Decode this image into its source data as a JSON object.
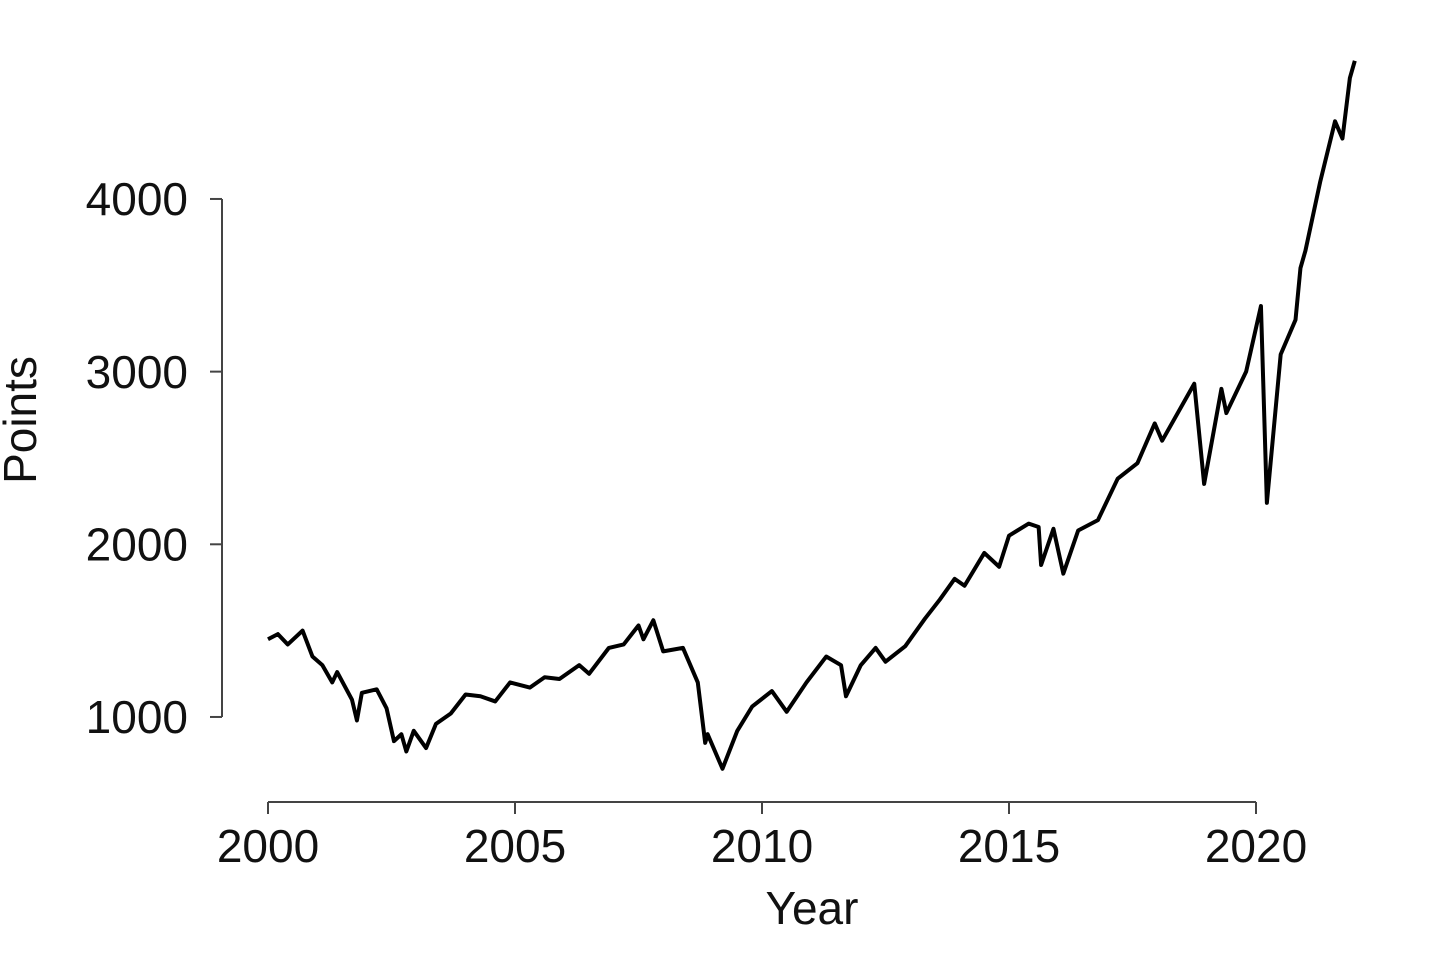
{
  "chart_data": {
    "type": "line",
    "x_label": "Year",
    "y_label": "Points",
    "xlim": [
      1999,
      2023
    ],
    "ylim": [
      500,
      5000
    ],
    "xticks": [
      2000,
      2005,
      2010,
      2015,
      2020
    ],
    "yticks": [
      1000,
      2000,
      3000,
      4000
    ],
    "grid": false,
    "series": [
      {
        "color": "#000000",
        "x": [
          2000.0,
          2000.2,
          2000.4,
          2000.7,
          2000.9,
          2001.1,
          2001.3,
          2001.4,
          2001.7,
          2001.8,
          2001.9,
          2002.2,
          2002.4,
          2002.55,
          2002.7,
          2002.8,
          2002.95,
          2003.2,
          2003.4,
          2003.7,
          2004.0,
          2004.3,
          2004.6,
          2004.9,
          2005.3,
          2005.6,
          2005.9,
          2006.3,
          2006.5,
          2006.9,
          2007.2,
          2007.5,
          2007.6,
          2007.8,
          2008.0,
          2008.4,
          2008.7,
          2008.85,
          2008.9,
          2009.2,
          2009.5,
          2009.8,
          2010.2,
          2010.5,
          2010.9,
          2011.3,
          2011.6,
          2011.7,
          2012.0,
          2012.3,
          2012.5,
          2012.9,
          2013.3,
          2013.6,
          2013.9,
          2014.1,
          2014.5,
          2014.8,
          2015.0,
          2015.4,
          2015.6,
          2015.65,
          2015.9,
          2016.1,
          2016.4,
          2016.8,
          2017.2,
          2017.6,
          2017.95,
          2018.1,
          2018.75,
          2018.95,
          2019.3,
          2019.4,
          2019.8,
          2020.1,
          2020.22,
          2020.5,
          2020.8,
          2020.9,
          2021.0,
          2021.3,
          2021.6,
          2021.75,
          2021.9,
          2022.0
        ],
        "values": [
          1450,
          1480,
          1420,
          1500,
          1350,
          1300,
          1200,
          1260,
          1100,
          980,
          1140,
          1160,
          1050,
          860,
          900,
          800,
          920,
          820,
          960,
          1020,
          1130,
          1120,
          1090,
          1200,
          1170,
          1230,
          1220,
          1300,
          1250,
          1400,
          1420,
          1530,
          1450,
          1560,
          1380,
          1400,
          1200,
          850,
          900,
          700,
          920,
          1060,
          1150,
          1030,
          1200,
          1350,
          1300,
          1120,
          1300,
          1400,
          1320,
          1410,
          1570,
          1680,
          1800,
          1760,
          1950,
          1870,
          2050,
          2120,
          2100,
          1880,
          2090,
          1830,
          2080,
          2140,
          2380,
          2470,
          2700,
          2600,
          2930,
          2350,
          2900,
          2760,
          3000,
          3380,
          2240,
          3100,
          3300,
          3600,
          3700,
          4100,
          4450,
          4350,
          4700,
          4800
        ]
      }
    ]
  }
}
